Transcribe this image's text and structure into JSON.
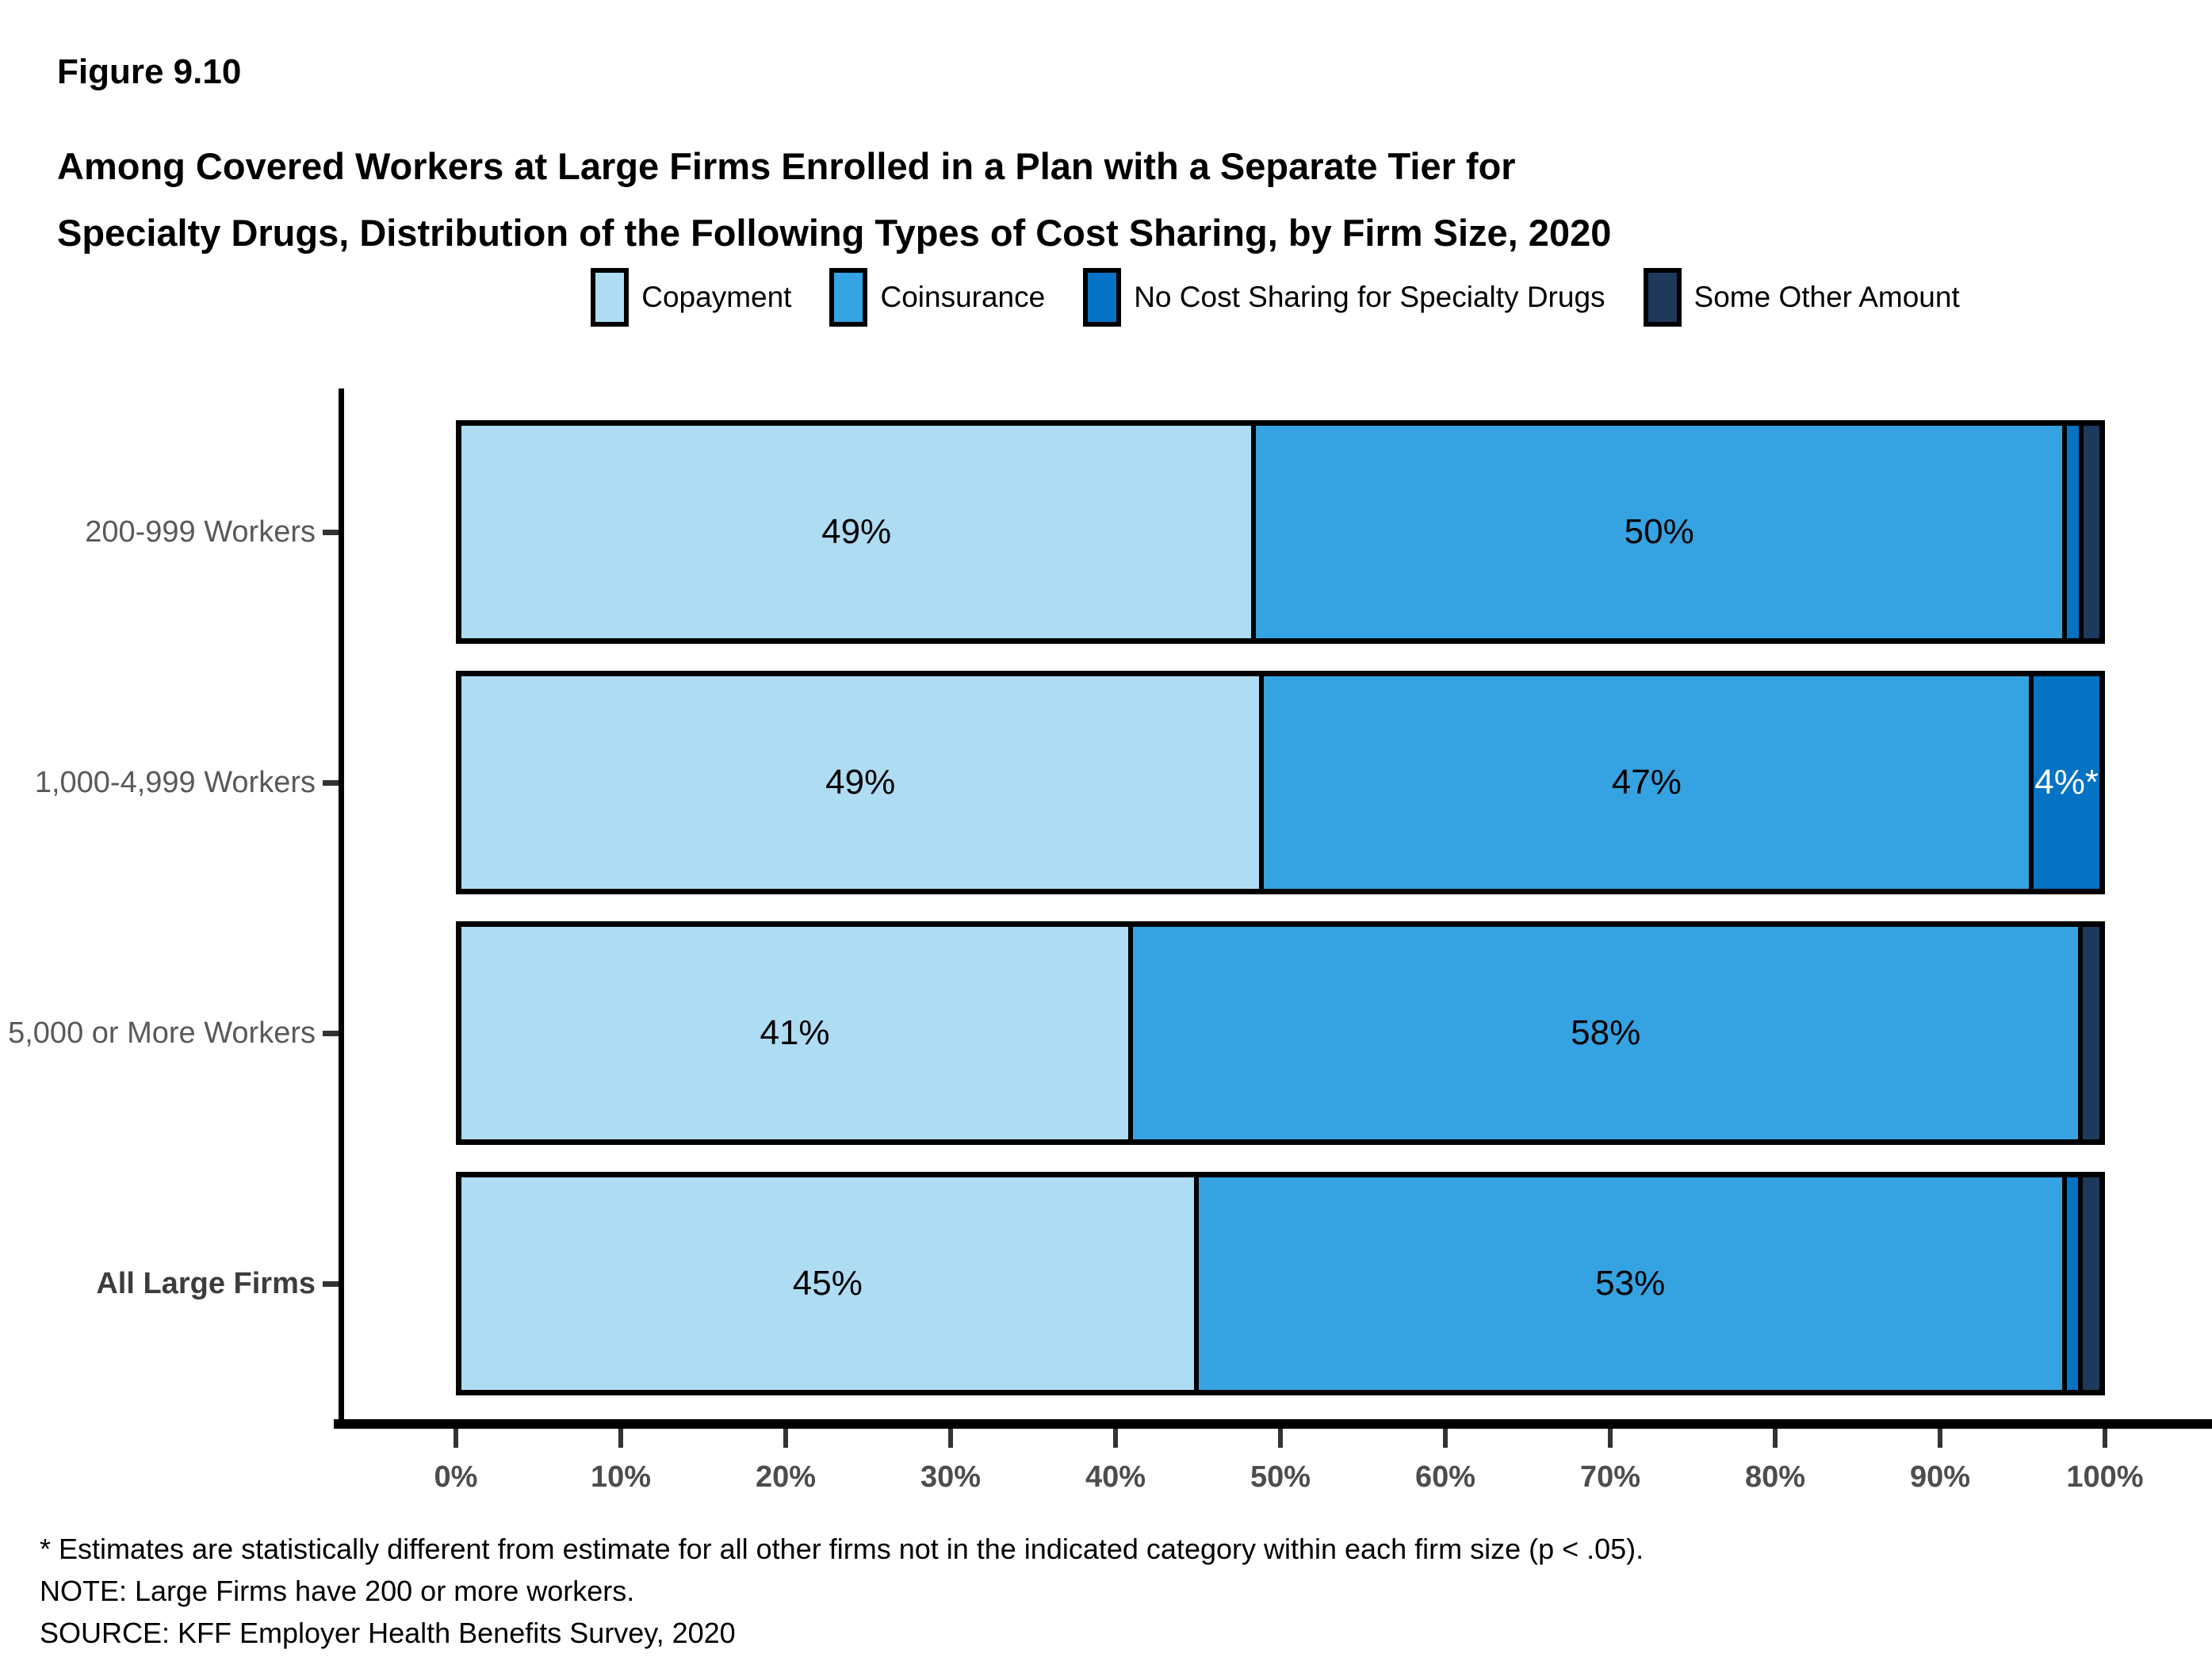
{
  "figure_number": "Figure 9.10",
  "title_line1": "Among Covered Workers at Large Firms Enrolled in a Plan with a Separate Tier for",
  "title_line2": "Specialty Drugs, Distribution of the Following Types of Cost Sharing, by Firm Size, 2020",
  "chart_data": {
    "type": "bar",
    "orientation": "horizontal_stacked",
    "title": "Among Covered Workers at Large Firms Enrolled in a Plan with a Separate Tier for Specialty Drugs, Distribution of the Following Types of Cost Sharing, by Firm Size, 2020",
    "categories": [
      {
        "label": "200-999 Workers",
        "bold": false
      },
      {
        "label": "1,000-4,999 Workers",
        "bold": false
      },
      {
        "label": "5,000 or More Workers",
        "bold": false
      },
      {
        "label": "All Large Firms",
        "bold": true
      }
    ],
    "series": [
      {
        "name": "Copayment",
        "color": "#AEDCF3",
        "label_color": "#000000",
        "values": [
          49,
          49,
          41,
          45
        ],
        "labels": [
          "49%",
          "49%",
          "41%",
          "45%"
        ]
      },
      {
        "name": "Coinsurance",
        "color": "#35A2E1",
        "label_color": "#000000",
        "values": [
          50,
          47,
          58,
          53
        ],
        "labels": [
          "50%",
          "47%",
          "58%",
          "53%"
        ]
      },
      {
        "name": "No Cost Sharing for Specialty Drugs",
        "color": "#0473C3",
        "label_color": "#ffffff",
        "values": [
          1,
          4,
          0,
          1
        ],
        "labels": [
          "",
          "4%*",
          "",
          ""
        ]
      },
      {
        "name": "Some Other Amount",
        "color": "#1D3A5C",
        "label_color": "#ffffff",
        "values": [
          1,
          0,
          1,
          1
        ],
        "labels": [
          "",
          "",
          "",
          ""
        ]
      }
    ],
    "x_ticks": [
      "0%",
      "10%",
      "20%",
      "30%",
      "40%",
      "50%",
      "60%",
      "70%",
      "80%",
      "90%",
      "100%"
    ],
    "xlim": [
      0,
      100
    ],
    "xlabel": "",
    "ylabel": "",
    "grid": false,
    "legend_position": "top"
  },
  "footnotes": [
    "* Estimates are statistically different from estimate for all other firms not in the indicated category within each firm size (p < .05).",
    "NOTE: Large Firms have 200 or more workers.",
    "SOURCE: KFF Employer Health Benefits Survey, 2020"
  ]
}
